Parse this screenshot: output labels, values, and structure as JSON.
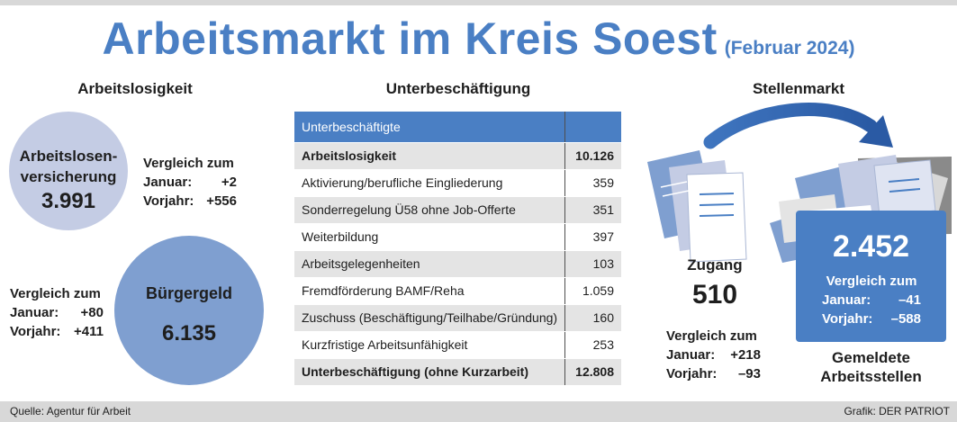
{
  "header": {
    "title": "Arbeitsmarkt im Kreis Soest",
    "subtitle": "(Februar 2024)"
  },
  "arbeitslosigkeit": {
    "heading": "Arbeitslosigkeit",
    "versicherung": {
      "label_line1": "Arbeitslosen-",
      "label_line2": "versicherung",
      "value": "3.991",
      "compare_title": "Vergleich zum",
      "januar_label": "Januar:",
      "januar_value": "+2",
      "vorjahr_label": "Vorjahr:",
      "vorjahr_value": "+556"
    },
    "buergergeld": {
      "label": "Bürgergeld",
      "value": "6.135",
      "compare_title": "Vergleich zum",
      "januar_label": "Januar:",
      "januar_value": "+80",
      "vorjahr_label": "Vorjahr:",
      "vorjahr_value": "+411"
    }
  },
  "unterbeschaeftigung": {
    "heading": "Unterbeschäftigung",
    "table_header": "Unterbeschäftigte",
    "rows": [
      {
        "label": "Arbeitslosigkeit",
        "value": "10.126"
      },
      {
        "label": "Aktivierung/berufliche Eingliederung",
        "value": "359"
      },
      {
        "label": "Sonderregelung Ü58 ohne Job-Offerte",
        "value": "351"
      },
      {
        "label": "Weiterbildung",
        "value": "397"
      },
      {
        "label": "Arbeitsgelegenheiten",
        "value": "103"
      },
      {
        "label": "Fremdförderung BAMF/Reha",
        "value": "1.059"
      },
      {
        "label": "Zuschuss (Beschäftigung/Teilhabe/Gründung)",
        "value": "160"
      },
      {
        "label": "Kurzfristige Arbeitsunfähigkeit",
        "value": "253"
      },
      {
        "label": "Unterbeschäftigung (ohne Kurzarbeit)",
        "value": "12.808"
      }
    ]
  },
  "stellenmarkt": {
    "heading": "Stellenmarkt",
    "zugang": {
      "label": "Zugang",
      "value": "510",
      "compare_title": "Vergleich zum",
      "januar_label": "Januar:",
      "januar_value": "+218",
      "vorjahr_label": "Vorjahr:",
      "vorjahr_value": "–93"
    },
    "gemeldet": {
      "value": "2.452",
      "compare_title": "Vergleich zum",
      "januar_label": "Januar:",
      "januar_value": "–41",
      "vorjahr_label": "Vorjahr:",
      "vorjahr_value": "–588",
      "label_line1": "Gemeldete",
      "label_line2": "Arbeitsstellen"
    }
  },
  "footer": {
    "source": "Quelle: Agentur für Arbeit",
    "credit": "Grafik: DER PATRIOT"
  },
  "colors": {
    "accent": "#4a7fc4",
    "circle_light": "#c4cce4",
    "circle_dark": "#7f9fd0",
    "row_shade": "#e4e4e4",
    "footer_bg": "#d8d8d8"
  }
}
